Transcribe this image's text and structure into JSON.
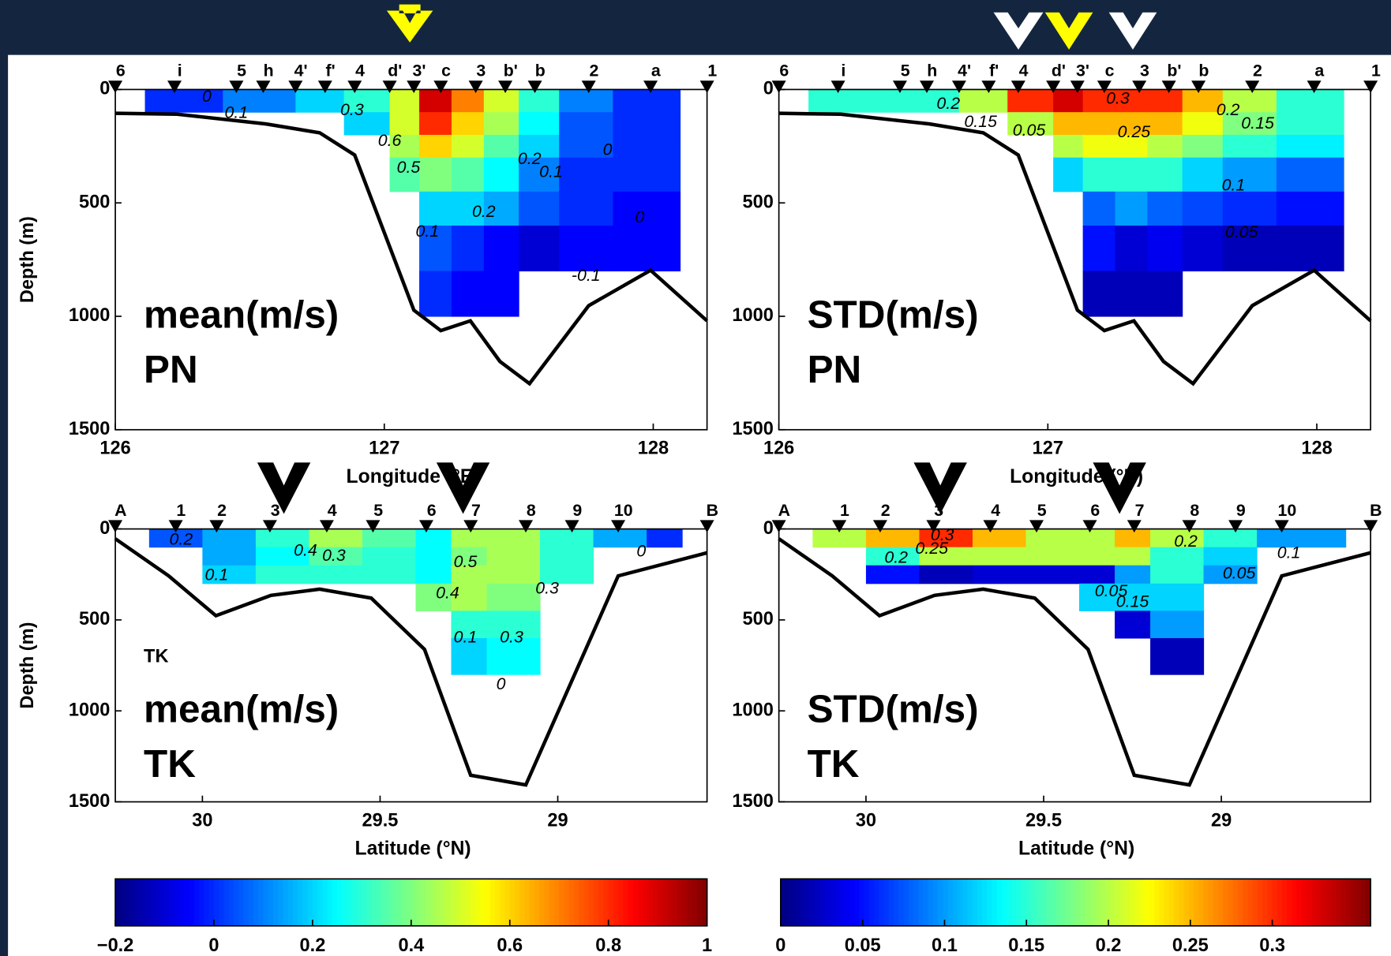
{
  "chart_data": [
    {
      "type": "contour",
      "title": "mean(m/s)",
      "subtitle": "PN",
      "xlabel": "Longitude (°E)",
      "ylabel": "Depth (m)",
      "xlim": [
        126,
        128.2
      ],
      "ylim": [
        0,
        1500
      ],
      "yreverse": true,
      "xticks": [
        126,
        127,
        128
      ],
      "yticks": [
        0,
        500,
        1000,
        1500
      ],
      "clim": [
        -0.2,
        1
      ],
      "stations": {
        "labels": [
          "6",
          "i",
          "5",
          "h",
          "4'",
          "f'",
          "4",
          "d'",
          "3'",
          "c",
          "3",
          "b'",
          "b",
          "2",
          "a",
          "1"
        ],
        "x": [
          126.0,
          126.22,
          126.45,
          126.55,
          126.67,
          126.78,
          126.89,
          127.02,
          127.11,
          127.21,
          127.34,
          127.45,
          127.56,
          127.76,
          127.99,
          128.2
        ]
      },
      "bathymetry": {
        "x": [
          126,
          126.23,
          126.56,
          126.76,
          126.89,
          127.11,
          127.21,
          127.32,
          127.43,
          127.54,
          127.76,
          127.99,
          128.2
        ],
        "y": [
          105,
          109,
          152,
          191,
          289,
          973,
          1063,
          1020,
          1199,
          1297,
          953,
          797,
          1020
        ]
      },
      "grid_x": [
        126.11,
        126.4,
        126.67,
        126.85,
        127.02,
        127.13,
        127.25,
        127.37,
        127.5,
        127.65,
        127.85,
        128.1
      ],
      "grid_y": [
        0,
        100,
        200,
        300,
        450,
        600,
        800,
        1000
      ],
      "z": [
        [
          0,
          0.1,
          0.2,
          0.3,
          0.5,
          0.9,
          0.7,
          0.5,
          0.3,
          0.1,
          0
        ],
        [
          null,
          null,
          null,
          0.2,
          0.5,
          0.8,
          0.6,
          0.45,
          0.25,
          0.05,
          0
        ],
        [
          null,
          null,
          null,
          null,
          0.45,
          0.6,
          0.5,
          0.35,
          0.2,
          0.05,
          0
        ],
        [
          null,
          null,
          null,
          null,
          0.35,
          0.4,
          0.35,
          0.25,
          0.1,
          0,
          0
        ],
        [
          null,
          null,
          null,
          null,
          null,
          0.2,
          0.2,
          0.15,
          0.05,
          0,
          -0.05
        ],
        [
          null,
          null,
          null,
          null,
          null,
          0.05,
          0,
          -0.05,
          -0.1,
          -0.05,
          -0.05
        ],
        [
          null,
          null,
          null,
          null,
          null,
          0,
          -0.05,
          -0.05,
          null,
          null,
          null
        ]
      ],
      "contour_labels": [
        {
          "text": "0",
          "x": 126.34,
          "y": 35
        },
        {
          "text": "0.1",
          "x": 126.45,
          "y": 105
        },
        {
          "text": "0.3",
          "x": 126.88,
          "y": 94
        },
        {
          "text": "0.6",
          "x": 127.02,
          "y": 230
        },
        {
          "text": "0.5",
          "x": 127.09,
          "y": 348
        },
        {
          "text": "0.2",
          "x": 127.54,
          "y": 309
        },
        {
          "text": "0.1",
          "x": 127.62,
          "y": 367
        },
        {
          "text": "0",
          "x": 127.83,
          "y": 270
        },
        {
          "text": "0.2",
          "x": 127.37,
          "y": 543
        },
        {
          "text": "0.1",
          "x": 127.16,
          "y": 629
        },
        {
          "text": "0",
          "x": 127.95,
          "y": 566
        },
        {
          "text": "-0.1",
          "x": 127.75,
          "y": 824
        }
      ]
    },
    {
      "type": "contour",
      "title": "STD(m/s)",
      "subtitle": "PN",
      "xlabel": "Longitude (°E)",
      "ylabel": "",
      "xlim": [
        126,
        128.2
      ],
      "ylim": [
        0,
        1500
      ],
      "yreverse": true,
      "xticks": [
        126,
        127,
        128
      ],
      "yticks": [
        0,
        500,
        1000,
        1500
      ],
      "clim": [
        0,
        0.36
      ],
      "stations": {
        "labels": [
          "6",
          "i",
          "5",
          "h",
          "4'",
          "f'",
          "4",
          "d'",
          "3'",
          "c",
          "3",
          "b'",
          "b",
          "2",
          "a",
          "1"
        ],
        "x": [
          126.0,
          126.22,
          126.45,
          126.55,
          126.67,
          126.78,
          126.89,
          127.02,
          127.11,
          127.21,
          127.34,
          127.45,
          127.56,
          127.76,
          127.99,
          128.2
        ]
      },
      "bathymetry": {
        "x": [
          126,
          126.23,
          126.56,
          126.76,
          126.89,
          127.11,
          127.21,
          127.32,
          127.43,
          127.54,
          127.76,
          127.99,
          128.2
        ],
        "y": [
          105,
          109,
          152,
          191,
          289,
          973,
          1063,
          1020,
          1199,
          1297,
          953,
          797,
          1020
        ]
      },
      "grid_x": [
        126.11,
        126.4,
        126.67,
        126.85,
        127.02,
        127.13,
        127.25,
        127.37,
        127.5,
        127.65,
        127.85,
        128.1
      ],
      "grid_y": [
        0,
        100,
        200,
        300,
        450,
        600,
        800,
        1000
      ],
      "z": [
        [
          0.15,
          0.15,
          0.2,
          0.3,
          0.33,
          0.3,
          0.3,
          0.3,
          0.25,
          0.2,
          0.15
        ],
        [
          null,
          null,
          null,
          0.2,
          0.25,
          0.25,
          0.25,
          0.25,
          0.22,
          0.18,
          0.15
        ],
        [
          null,
          null,
          null,
          null,
          0.2,
          0.22,
          0.22,
          0.2,
          0.18,
          0.15,
          0.13
        ],
        [
          null,
          null,
          null,
          null,
          0.12,
          0.15,
          0.15,
          0.15,
          0.12,
          0.1,
          0.08
        ],
        [
          null,
          null,
          null,
          null,
          null,
          0.08,
          0.1,
          0.08,
          0.07,
          0.06,
          0.05
        ],
        [
          null,
          null,
          null,
          null,
          null,
          0.05,
          0.03,
          0.04,
          0.03,
          0.02,
          0.02
        ],
        [
          null,
          null,
          null,
          null,
          null,
          0.02,
          0.02,
          0.02,
          null,
          null,
          null
        ]
      ],
      "contour_labels": [
        {
          "text": "0.2",
          "x": 126.63,
          "y": 66
        },
        {
          "text": "0.15",
          "x": 126.75,
          "y": 145
        },
        {
          "text": "0.05",
          "x": 126.93,
          "y": 184
        },
        {
          "text": "0.3",
          "x": 127.26,
          "y": 43
        },
        {
          "text": "0.25",
          "x": 127.32,
          "y": 191
        },
        {
          "text": "0.2",
          "x": 127.67,
          "y": 94
        },
        {
          "text": "0.15",
          "x": 127.78,
          "y": 152
        },
        {
          "text": "0.1",
          "x": 127.69,
          "y": 426
        },
        {
          "text": "0.05",
          "x": 127.72,
          "y": 633
        }
      ]
    },
    {
      "type": "contour",
      "title": "mean(m/s)",
      "subtitle": "TK",
      "annotation": "TK",
      "xlabel": "Latitude (°N)",
      "ylabel": "Depth (m)",
      "xlim": [
        30.245,
        28.58
      ],
      "ylim": [
        0,
        1500
      ],
      "yreverse": true,
      "xticks": [
        30,
        29.5,
        29
      ],
      "yticks": [
        0,
        500,
        1000,
        1500
      ],
      "clim": [
        -0.2,
        1
      ],
      "stations": {
        "labels": [
          "A",
          "1",
          "2",
          "3",
          "4",
          "5",
          "6",
          "7",
          "8",
          "9",
          "10",
          "B"
        ],
        "x": [
          30.245,
          30.075,
          29.96,
          29.81,
          29.65,
          29.52,
          29.37,
          29.245,
          29.09,
          28.96,
          28.83,
          28.58
        ]
      },
      "bathymetry": {
        "x": [
          30.245,
          30.095,
          29.962,
          29.807,
          29.67,
          29.525,
          29.375,
          29.245,
          29.09,
          28.83,
          28.58
        ],
        "y": [
          54,
          258,
          477,
          365,
          331,
          380,
          662,
          1354,
          1407,
          258,
          131
        ]
      },
      "grid_x": [
        30.15,
        30.0,
        29.85,
        29.7,
        29.55,
        29.4,
        29.3,
        29.2,
        29.05,
        28.9,
        28.75,
        28.65
      ],
      "grid_y": [
        0,
        100,
        200,
        300,
        450,
        600,
        800
      ],
      "z": [
        [
          0.05,
          0.15,
          0.3,
          0.45,
          0.35,
          0.25,
          0.45,
          0.45,
          0.3,
          0.15,
          0
        ],
        [
          null,
          0.15,
          0.25,
          0.35,
          0.3,
          0.25,
          0.4,
          0.45,
          0.3,
          null,
          null
        ],
        [
          null,
          0.2,
          0.3,
          0.3,
          0.3,
          0.25,
          0.45,
          0.45,
          0.3,
          null,
          null
        ],
        [
          null,
          null,
          null,
          null,
          null,
          0.4,
          0.45,
          0.4,
          null,
          null,
          null
        ],
        [
          null,
          null,
          null,
          null,
          null,
          null,
          0.3,
          0.3,
          null,
          null,
          null
        ],
        [
          null,
          null,
          null,
          null,
          null,
          null,
          0.2,
          0.25,
          null,
          null,
          null
        ]
      ],
      "contour_labels": [
        {
          "text": "0.2",
          "x": 30.06,
          "y": 63
        },
        {
          "text": "0.1",
          "x": 29.96,
          "y": 258
        },
        {
          "text": "0.4",
          "x": 29.71,
          "y": 122
        },
        {
          "text": "0.3",
          "x": 29.63,
          "y": 151
        },
        {
          "text": "0.5",
          "x": 29.26,
          "y": 185
        },
        {
          "text": "0.4",
          "x": 29.31,
          "y": 356
        },
        {
          "text": "0.3",
          "x": 29.03,
          "y": 331
        },
        {
          "text": "0.1",
          "x": 29.26,
          "y": 599
        },
        {
          "text": "0.3",
          "x": 29.13,
          "y": 599
        },
        {
          "text": "0",
          "x": 29.16,
          "y": 857
        },
        {
          "text": "0",
          "x": 28.765,
          "y": 127
        }
      ]
    },
    {
      "type": "contour",
      "title": "STD(m/s)",
      "subtitle": "TK",
      "xlabel": "Latitude (°N)",
      "ylabel": "",
      "xlim": [
        30.245,
        28.58
      ],
      "ylim": [
        0,
        1500
      ],
      "yreverse": true,
      "xticks": [
        30,
        29.5,
        29
      ],
      "yticks": [
        0,
        500,
        1000,
        1500
      ],
      "clim": [
        0,
        0.36
      ],
      "stations": {
        "labels": [
          "A",
          "1",
          "2",
          "3",
          "4",
          "5",
          "6",
          "7",
          "8",
          "9",
          "10",
          "B"
        ],
        "x": [
          30.245,
          30.075,
          29.96,
          29.81,
          29.65,
          29.52,
          29.37,
          29.245,
          29.09,
          28.96,
          28.83,
          28.58
        ]
      },
      "bathymetry": {
        "x": [
          30.245,
          30.095,
          29.962,
          29.807,
          29.67,
          29.525,
          29.375,
          29.245,
          29.09,
          28.83,
          28.58
        ],
        "y": [
          54,
          258,
          477,
          365,
          331,
          380,
          662,
          1354,
          1407,
          258,
          131
        ]
      },
      "grid_x": [
        30.15,
        30.0,
        29.85,
        29.7,
        29.55,
        29.4,
        29.3,
        29.2,
        29.05,
        28.9,
        28.75,
        28.65
      ],
      "grid_y": [
        0,
        100,
        200,
        300,
        450,
        600,
        800
      ],
      "z": [
        [
          0.2,
          0.25,
          0.3,
          0.25,
          0.2,
          0.2,
          0.25,
          0.2,
          0.15,
          0.1,
          0.1
        ],
        [
          null,
          0.15,
          0.2,
          0.2,
          0.2,
          0.2,
          0.2,
          0.15,
          0.12,
          null,
          null
        ],
        [
          null,
          0.05,
          0.02,
          0.03,
          0.03,
          0.03,
          0.1,
          0.15,
          0.1,
          null,
          null
        ],
        [
          null,
          null,
          null,
          null,
          null,
          0.12,
          0.12,
          0.12,
          null,
          null,
          null
        ],
        [
          null,
          null,
          null,
          null,
          null,
          null,
          0.03,
          0.1,
          null,
          null,
          null
        ],
        [
          null,
          null,
          null,
          null,
          null,
          null,
          null,
          0.02,
          null,
          null,
          null
        ]
      ],
      "contour_labels": [
        {
          "text": "0.3",
          "x": 29.785,
          "y": 39
        },
        {
          "text": "0.25",
          "x": 29.815,
          "y": 112
        },
        {
          "text": "0.2",
          "x": 29.915,
          "y": 161
        },
        {
          "text": "0.15",
          "x": 29.25,
          "y": 404
        },
        {
          "text": "0.05",
          "x": 29.31,
          "y": 346
        },
        {
          "text": "0.2",
          "x": 29.1,
          "y": 73
        },
        {
          "text": "0.1",
          "x": 28.81,
          "y": 136
        },
        {
          "text": "0.05",
          "x": 28.95,
          "y": 248
        }
      ]
    },
    {
      "type": "colorbar",
      "clim": [
        -0.2,
        1
      ],
      "cticks": [
        {
          "value": -0.2,
          "label": "−0.2"
        },
        0,
        0.2,
        0.4,
        0.6,
        0.8,
        1
      ]
    },
    {
      "type": "colorbar",
      "clim": [
        0,
        0.36
      ],
      "cticks": [
        0,
        0.05,
        0.1,
        0.15,
        0.2,
        0.25,
        0.3
      ]
    }
  ]
}
